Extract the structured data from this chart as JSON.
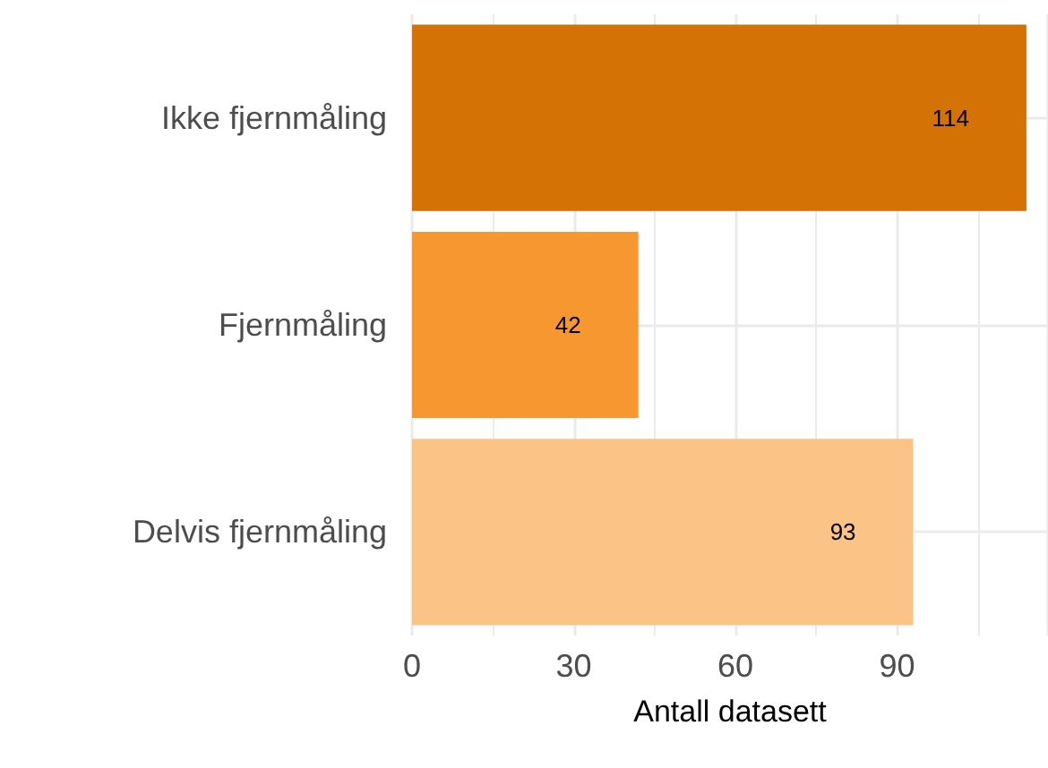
{
  "chart_data": {
    "type": "bar",
    "orientation": "horizontal",
    "xlabel": "Antall datasett",
    "categories": [
      "Ikke fjernmåling",
      "Fjernmåling",
      "Delvis fjernmåling"
    ],
    "values": [
      114,
      42,
      93
    ],
    "colors": [
      "#d57206",
      "#f7972f",
      "#fbc386"
    ],
    "xlim": [
      0,
      118
    ],
    "xticks": [
      0,
      30,
      60,
      90
    ],
    "grid": true,
    "data_labels": true
  }
}
